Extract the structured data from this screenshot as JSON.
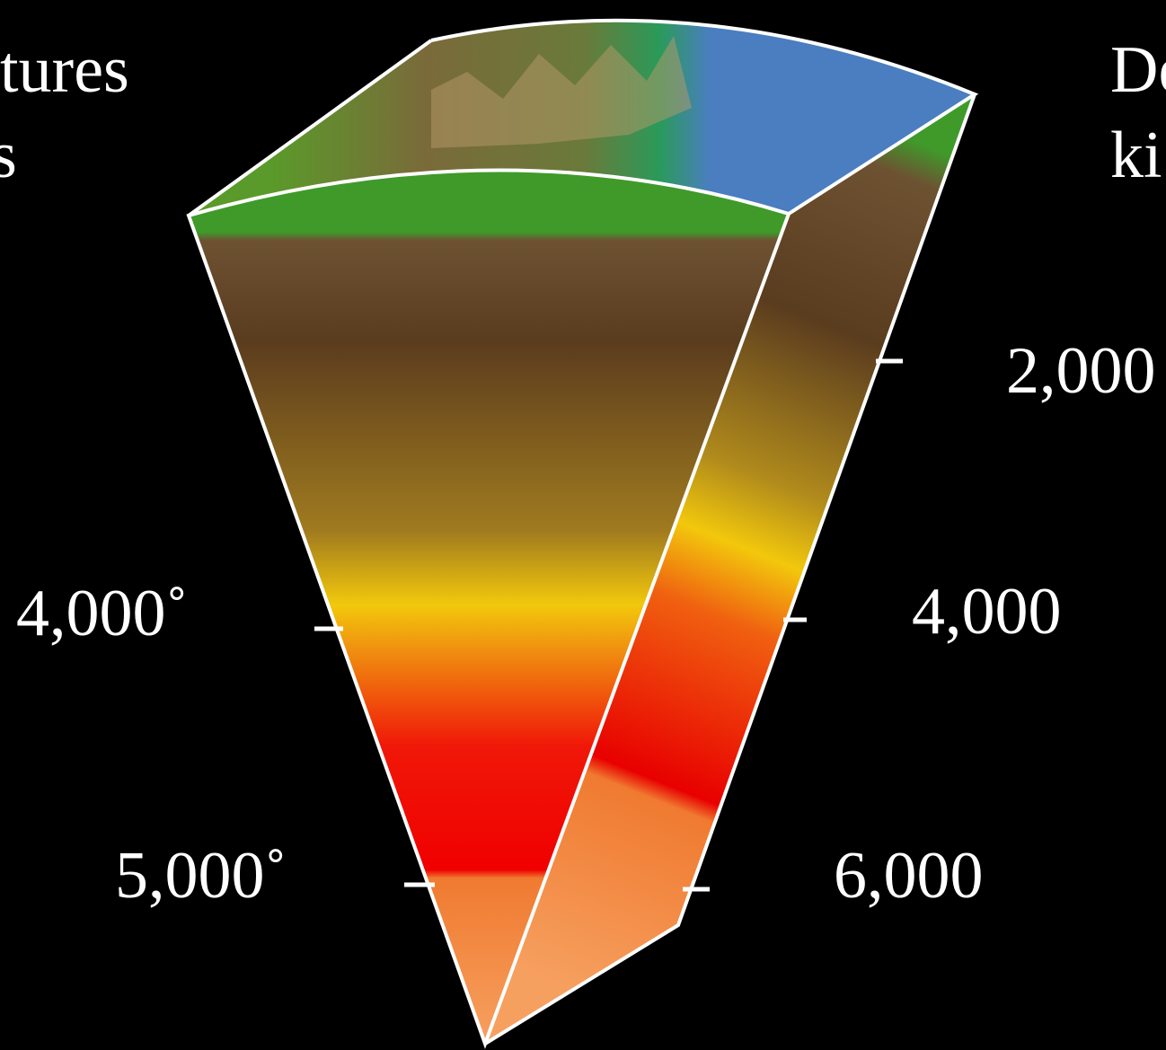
{
  "left_labels": {
    "title_fragment_1": "tures",
    "title_fragment_2": "s",
    "ticks": [
      "4,000˚",
      "5,000˚"
    ]
  },
  "right_labels": {
    "title_fragment_1": "De",
    "title_fragment_2": "ki",
    "ticks": [
      "2,000",
      "4,000",
      "6,000"
    ]
  }
}
